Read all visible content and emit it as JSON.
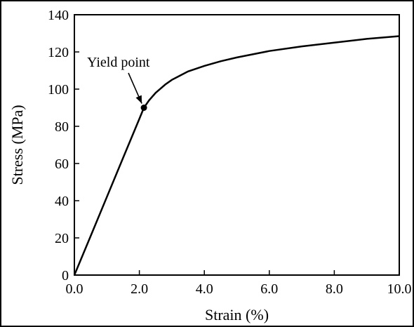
{
  "chart_data": {
    "type": "line",
    "title": "",
    "xlabel": "Strain (%)",
    "ylabel": "Stress (MPa)",
    "xlim": [
      0,
      10
    ],
    "ylim": [
      0,
      140
    ],
    "xticks": [
      0,
      2,
      4,
      6,
      8,
      10
    ],
    "xtick_labels": [
      "0.0",
      "2.0",
      "4.0",
      "6.0",
      "8.0",
      "10.0"
    ],
    "yticks": [
      0,
      20,
      40,
      60,
      80,
      100,
      120,
      140
    ],
    "ytick_labels": [
      "0",
      "20",
      "40",
      "60",
      "80",
      "100",
      "120",
      "140"
    ],
    "grid": false,
    "legend": "none",
    "series": [
      {
        "x": [
          0,
          0.5,
          1.0,
          1.5,
          2.0,
          2.14,
          2.3,
          2.5,
          2.8,
          3.0,
          3.5,
          4.0,
          4.5,
          5.0,
          6.0,
          7.0,
          8.0,
          9.0,
          10.0
        ],
        "y": [
          0,
          21,
          42,
          63,
          84,
          90,
          94,
          98,
          102.5,
          105,
          109.5,
          112.5,
          115,
          117,
          120.5,
          123,
          125,
          127,
          128.5
        ],
        "color": "#000000"
      }
    ],
    "annotations": [
      {
        "text": "Yield point",
        "x": 2.14,
        "y": 90,
        "marker": "dot"
      }
    ]
  }
}
